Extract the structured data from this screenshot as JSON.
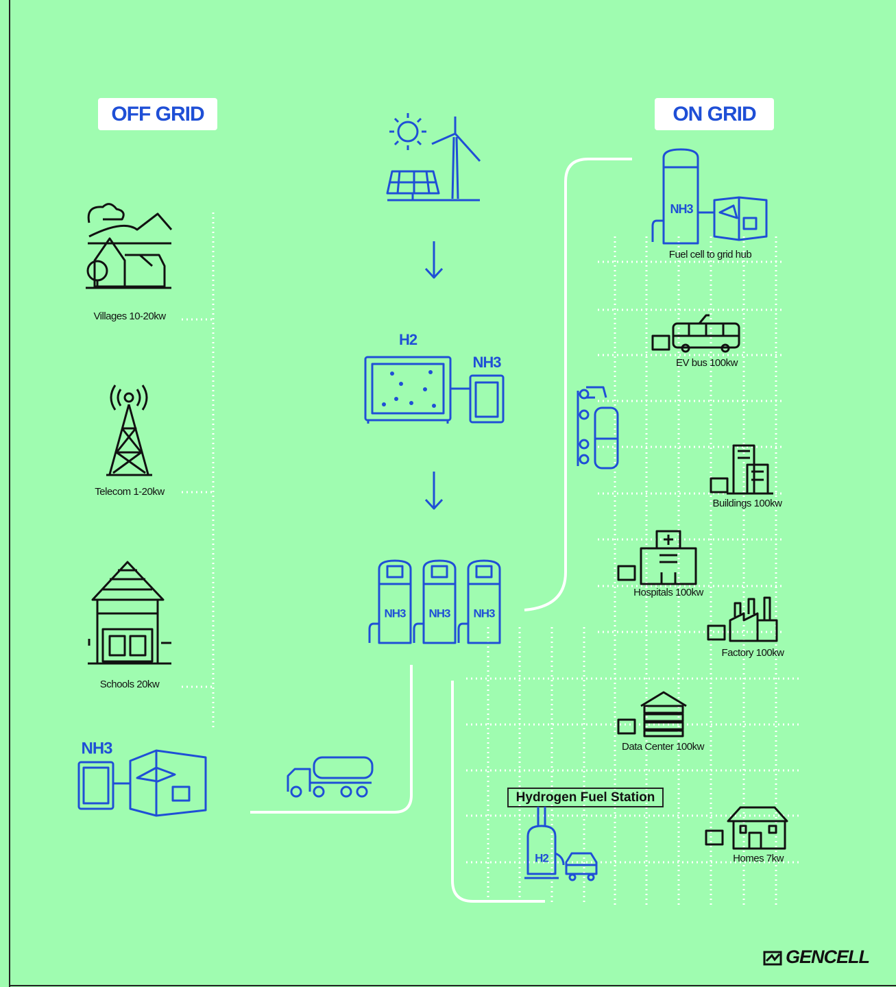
{
  "off_grid": {
    "title": "OFF GRID",
    "items": [
      {
        "label": "Villages 10-20kw"
      },
      {
        "label": "Telecom 1-20kw"
      },
      {
        "label": "Schools 20kw"
      }
    ],
    "unit_label": "NH3"
  },
  "center": {
    "electrolyzer": {
      "h2_label": "H2",
      "nh3_label": "NH3"
    },
    "tanks": [
      "NH3",
      "NH3",
      "NH3"
    ]
  },
  "on_grid": {
    "title": "ON GRID",
    "hub": {
      "tank_label": "NH3",
      "label": "Fuel cell to grid hub"
    },
    "items": [
      {
        "label": "EV bus 100kw"
      },
      {
        "label": "Buildings 100kw"
      },
      {
        "label": "Hospitals 100kw"
      },
      {
        "label": "Factory 100kw"
      },
      {
        "label": "Data Center 100kw"
      },
      {
        "label": "Homes 7kw"
      }
    ]
  },
  "station": {
    "title": "Hydrogen Fuel Station",
    "h2_label": "H2"
  },
  "logo": "GENCELL"
}
